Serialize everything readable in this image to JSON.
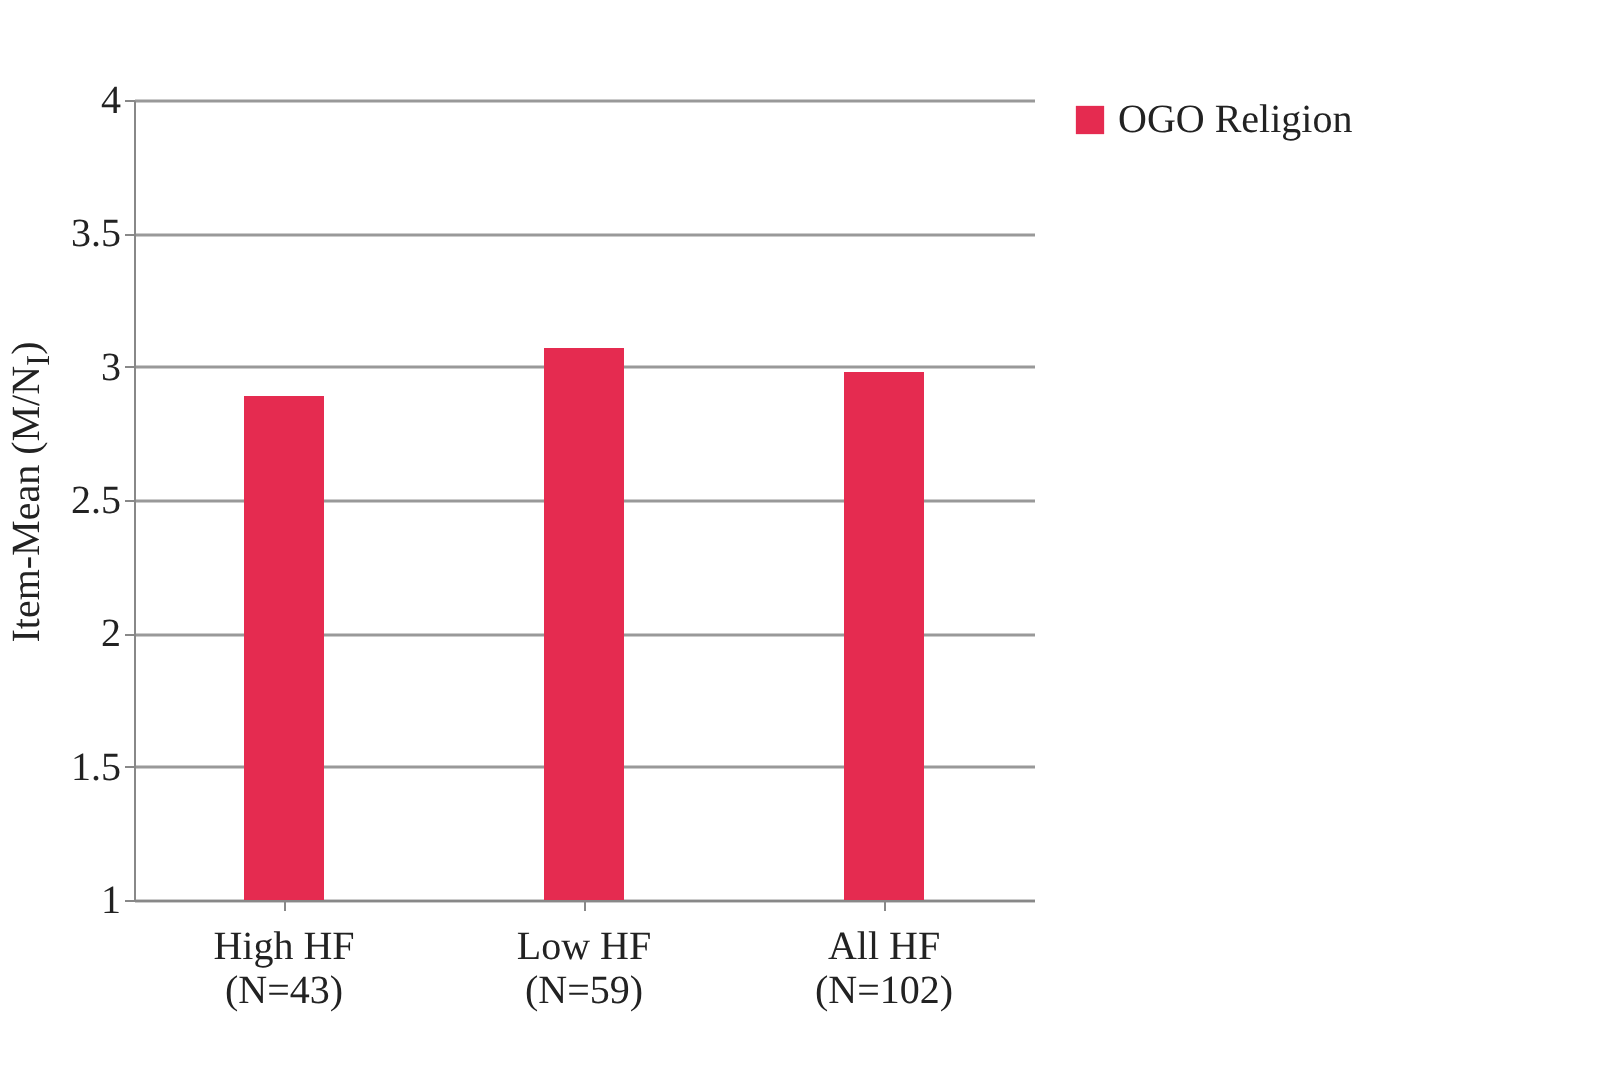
{
  "chart_data": {
    "type": "bar",
    "ylabel": "Item-Mean (M/N$_{I}$)",
    "categories": [
      "High HF\n(N=43)",
      "Low HF\n(N=59)",
      "All HF\n(N=102)"
    ],
    "series": [
      {
        "name": "OGO Religion",
        "color": "#e52b50",
        "values": [
          2.89,
          3.07,
          2.98
        ]
      }
    ],
    "ylim": [
      1,
      4
    ],
    "yticks": [
      1,
      1.5,
      2,
      2.5,
      3,
      3.5,
      4
    ],
    "grid": "y",
    "legend": "right"
  }
}
